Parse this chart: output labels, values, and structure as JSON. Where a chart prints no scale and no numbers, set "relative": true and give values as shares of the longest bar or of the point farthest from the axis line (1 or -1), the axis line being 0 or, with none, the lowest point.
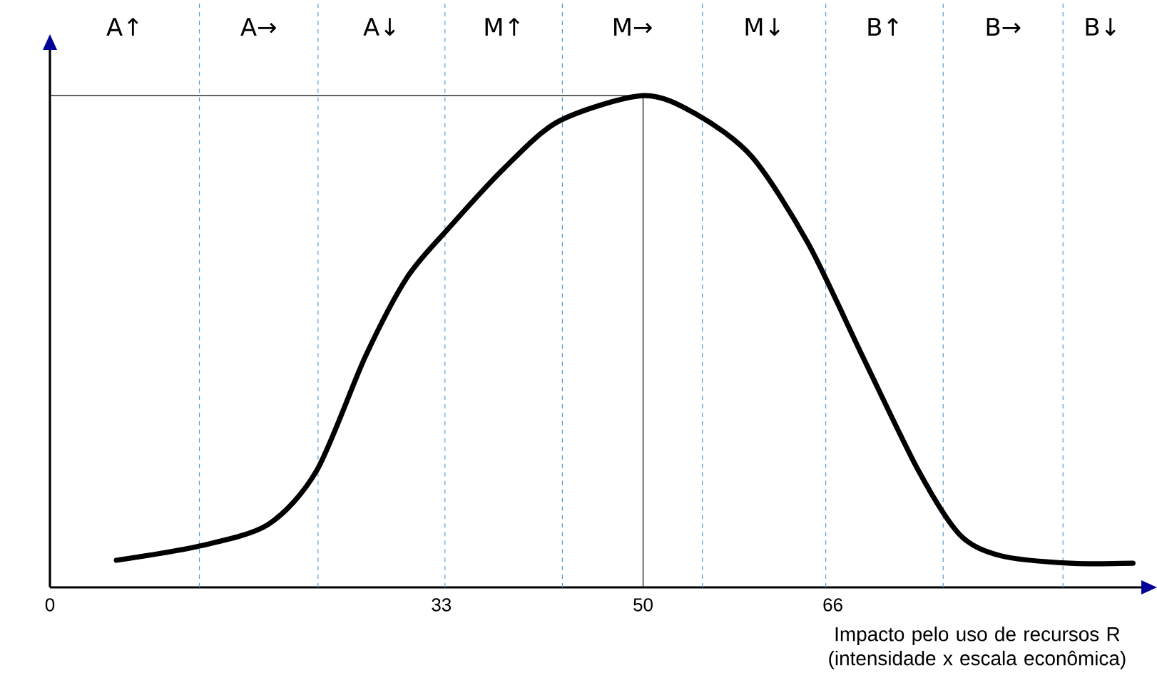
{
  "chart_data": {
    "type": "line",
    "relative": true,
    "color": "#000000",
    "line_style": "solid",
    "x": [
      5.6,
      12.6,
      18.4,
      22.5,
      26.6,
      30.1,
      33.6,
      38.2,
      42.9,
      50,
      54.5,
      59.2,
      63.9,
      68.5,
      73.2,
      76.7,
      80.2,
      86,
      91.3
    ],
    "values": [
      0.055,
      0.084,
      0.128,
      0.238,
      0.47,
      0.63,
      0.73,
      0.85,
      0.948,
      1,
      0.962,
      0.875,
      0.7,
      0.47,
      0.238,
      0.107,
      0.064,
      0.049,
      0.049
    ],
    "xlim": [
      0,
      92
    ],
    "xticks": [
      0,
      33,
      50,
      66
    ],
    "xlabel": "Impacto pelo uso de recursos R (intensidade x escala econômica)",
    "ref_lines": [
      {
        "axis": "x",
        "value": 12.6,
        "color": "#5b9bd5",
        "line_style": "dashed"
      },
      {
        "axis": "x",
        "value": 22.6,
        "color": "#5b9bd5",
        "line_style": "dashed"
      },
      {
        "axis": "x",
        "value": 33.3,
        "color": "#5b9bd5",
        "line_style": "dashed"
      },
      {
        "axis": "x",
        "value": 43.2,
        "color": "#5b9bd5",
        "line_style": "dashed"
      },
      {
        "axis": "x",
        "value": 55,
        "color": "#5b9bd5",
        "line_style": "dashed"
      },
      {
        "axis": "x",
        "value": 65.4,
        "color": "#5b9bd5",
        "line_style": "dashed"
      },
      {
        "axis": "x",
        "value": 75.3,
        "color": "#5b9bd5",
        "line_style": "dashed"
      },
      {
        "axis": "x",
        "value": 85.4,
        "color": "#5b9bd5",
        "line_style": "dashed"
      },
      {
        "axis": "x",
        "value": 50,
        "color": "#000000",
        "line_style": "solid"
      },
      {
        "axis": "y",
        "value": 1,
        "color": "#000000",
        "line_style": "solid"
      }
    ],
    "annotations": [
      "A↑",
      "A→",
      "A↓",
      "M↑",
      "M→",
      "M↓",
      "B↑",
      "B→",
      "B↓"
    ]
  }
}
